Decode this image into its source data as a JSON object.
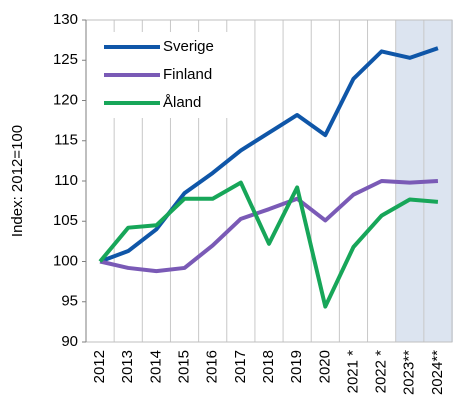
{
  "chart_data": {
    "type": "line",
    "y_axis_label": "Index: 2012=100",
    "categories": [
      "2012",
      "2013",
      "2014",
      "2015",
      "2016",
      "2017",
      "2018",
      "2019",
      "2020",
      "2021 *",
      "2022 *",
      "2023**",
      "2024**"
    ],
    "series": [
      {
        "name": "Sverige",
        "color": "#0f56a8",
        "values": [
          100,
          101.3,
          104,
          108.5,
          111,
          113.8,
          116,
          118.2,
          115.7,
          122.7,
          126.1,
          125.3,
          126.5
        ]
      },
      {
        "name": "Finland",
        "color": "#7a5ab6",
        "values": [
          100,
          99.2,
          98.8,
          99.2,
          102,
          105.3,
          106.5,
          107.8,
          105.1,
          108.3,
          110,
          109.8,
          110
        ]
      },
      {
        "name": "Åland",
        "color": "#17a659",
        "values": [
          100,
          104.2,
          104.5,
          107.8,
          107.8,
          109.8,
          102.2,
          109.2,
          94.4,
          101.8,
          105.7,
          107.7,
          107.4
        ]
      }
    ],
    "ylim": [
      90,
      130
    ],
    "yticks": [
      90,
      95,
      100,
      105,
      110,
      115,
      120,
      125,
      130
    ],
    "grid": true,
    "legend": "top-left"
  }
}
